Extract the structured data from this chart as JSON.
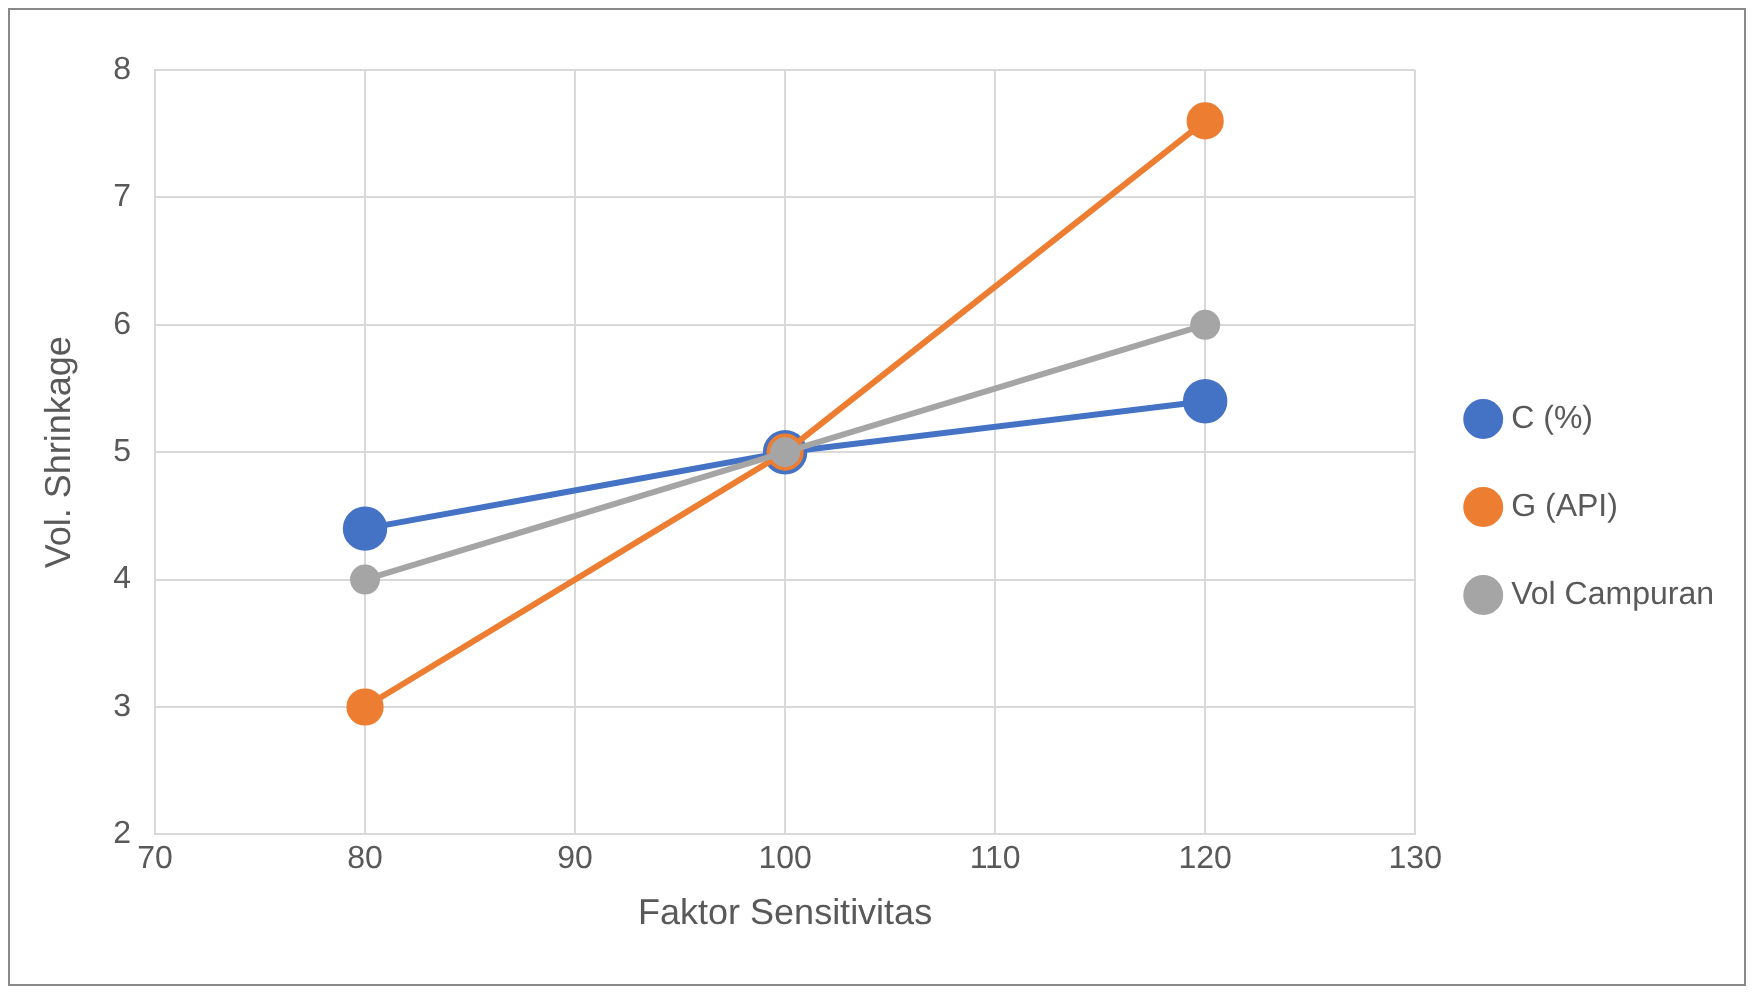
{
  "chart_data": {
    "type": "line",
    "xlabel": "Faktor Sensitivitas",
    "ylabel": "Vol. Shrinkage",
    "x": [
      80,
      100,
      120
    ],
    "series": [
      {
        "name": "C (%)",
        "color": "#4472c4",
        "values": [
          4.4,
          5,
          5.4
        ]
      },
      {
        "name": "G (API)",
        "color": "#ed7d31",
        "values": [
          3,
          5,
          7.6
        ]
      },
      {
        "name": "Vol Campuran",
        "color": "#a5a5a5",
        "values": [
          4,
          5,
          6
        ]
      }
    ],
    "xlim": [
      70,
      130
    ],
    "xticks": [
      70,
      80,
      90,
      100,
      110,
      120,
      130
    ],
    "ylim": [
      2,
      8
    ],
    "yticks": [
      2,
      3,
      4,
      5,
      6,
      7,
      8
    ],
    "grid": true,
    "legend": "right",
    "marker": "circle",
    "line_style": "solid"
  }
}
